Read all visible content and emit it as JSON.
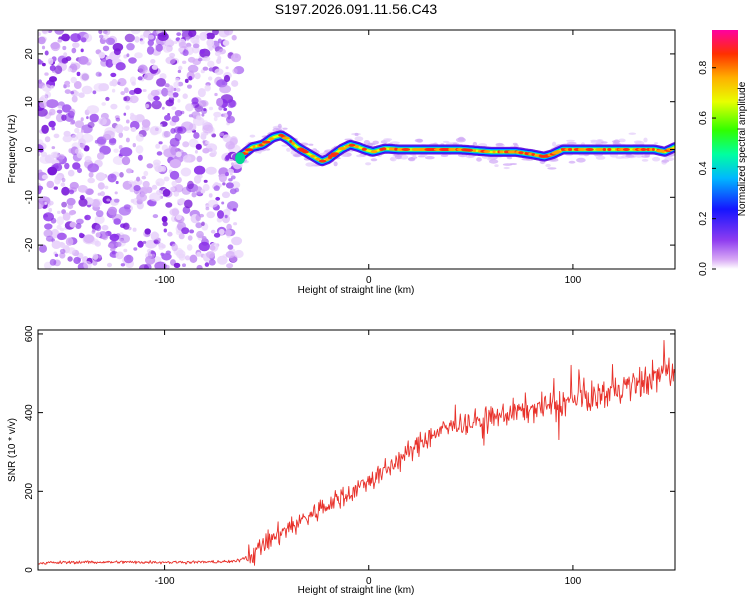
{
  "chart_data": [
    {
      "type": "heatmap",
      "title": "S197.2026.091.11.56.C43",
      "xlabel": "Height of straight line (km)",
      "ylabel": "Frequency (Hz)",
      "xlim": [
        -162,
        150
      ],
      "ylim": [
        -25,
        25
      ],
      "x_ticks": [
        -100,
        0,
        100
      ],
      "y_ticks": [
        -20,
        -10,
        0,
        10,
        20
      ],
      "noise_region_x": [
        -162,
        -65
      ],
      "frequency_track": {
        "x": [
          -63,
          -57,
          -52,
          -47,
          -43,
          -39,
          -35,
          -31,
          -27,
          -23,
          -20,
          -17,
          -13,
          -9,
          -5,
          -2,
          2,
          8,
          15,
          30,
          45,
          60,
          72,
          80,
          86,
          90,
          95,
          100,
          110,
          125,
          140,
          145,
          150
        ],
        "freq_hz": [
          -1.5,
          0.5,
          1.0,
          2.5,
          3.0,
          2.0,
          0.5,
          -0.5,
          -1.5,
          -2.5,
          -2.0,
          -1.0,
          0.2,
          1.0,
          0.5,
          0.0,
          -0.5,
          0.2,
          0.0,
          0.0,
          0.0,
          -0.5,
          -0.5,
          -1.0,
          -1.5,
          -1.0,
          0.0,
          0.0,
          0.0,
          0.0,
          0.0,
          -0.5,
          0.5
        ]
      },
      "colorbar": {
        "label": "Normalized spectral amplitude",
        "range": [
          0.0,
          0.95
        ],
        "ticks": [
          "0.0",
          "0.2",
          "0.4",
          "0.6",
          "0.8"
        ]
      }
    },
    {
      "type": "line",
      "xlabel": "Height of straight line (km)",
      "ylabel": "SNR (10 * v/v)",
      "xlim": [
        -162,
        150
      ],
      "ylim": [
        0,
        610
      ],
      "x_ticks": [
        -100,
        0,
        100
      ],
      "y_ticks": [
        0,
        200,
        400,
        600
      ],
      "color": "#e8312a",
      "series": [
        {
          "name": "SNR",
          "x": [
            -162,
            -140,
            -120,
            -100,
            -80,
            -65,
            -57,
            -50,
            -40,
            -30,
            -20,
            -10,
            0,
            10,
            20,
            30,
            40,
            50,
            60,
            70,
            80,
            90,
            100,
            110,
            120,
            130,
            140,
            145,
            150
          ],
          "values": [
            18,
            20,
            20,
            20,
            20,
            22,
            40,
            70,
            105,
            135,
            165,
            195,
            225,
            260,
            300,
            340,
            365,
            375,
            385,
            400,
            410,
            420,
            430,
            440,
            455,
            470,
            490,
            505,
            500
          ]
        }
      ]
    }
  ]
}
